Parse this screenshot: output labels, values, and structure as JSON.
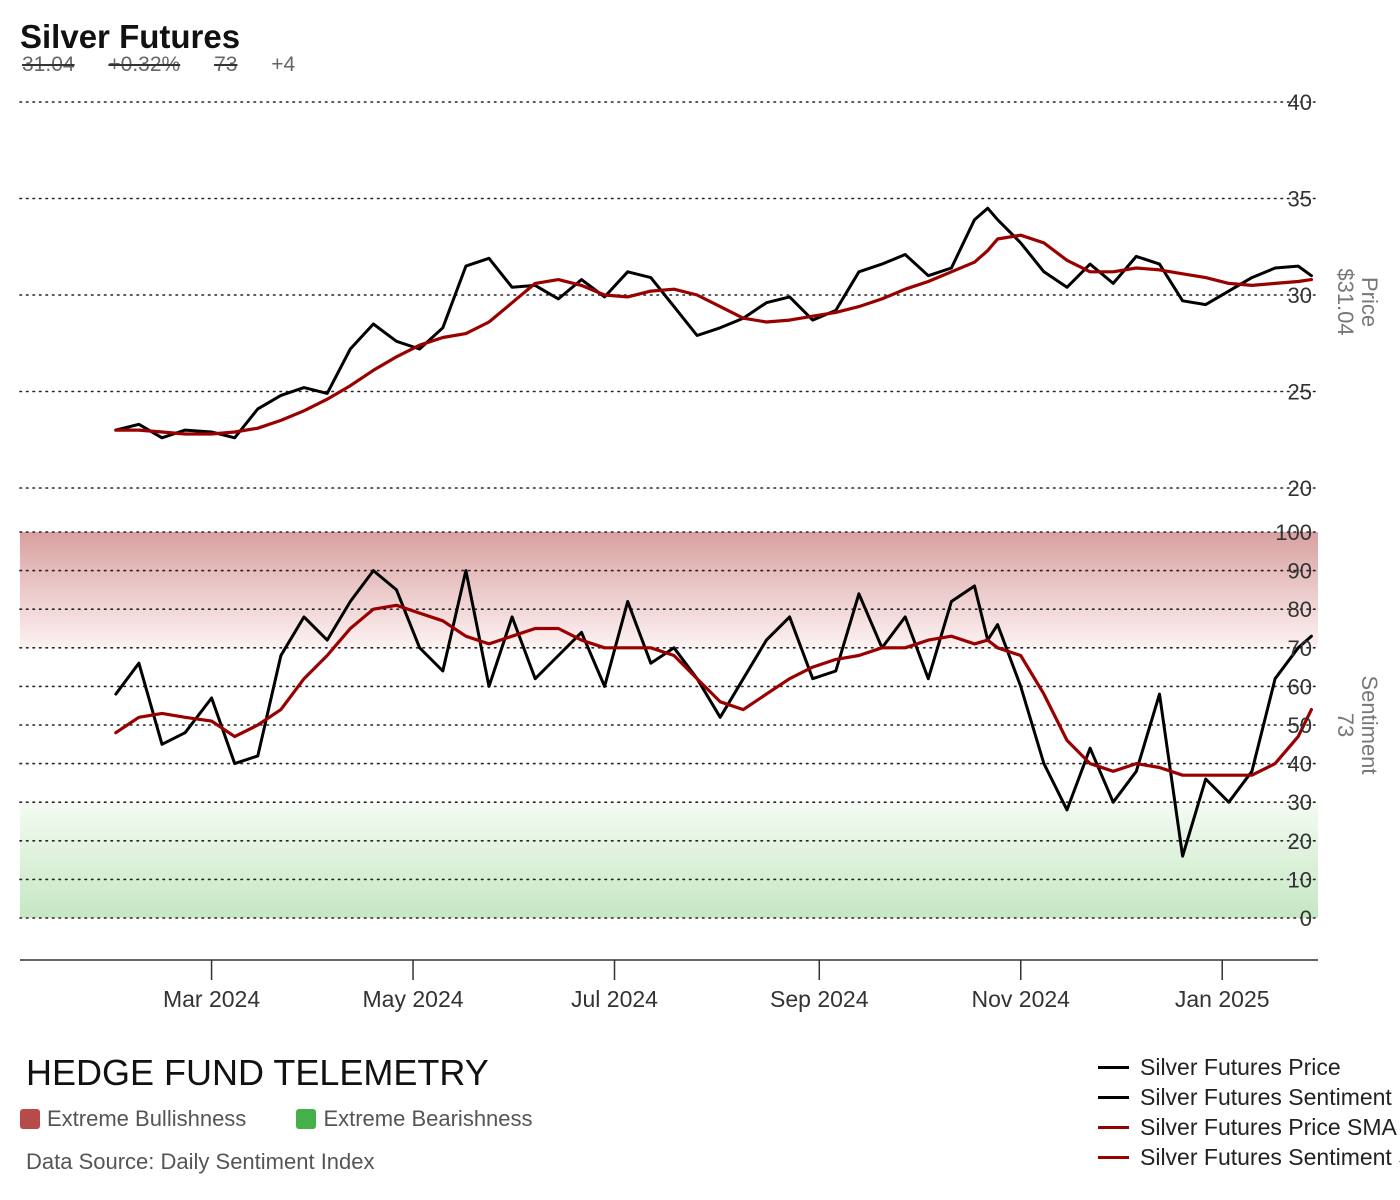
{
  "header": {
    "title": "Silver Futures",
    "price": "31.04",
    "change_pct": "+0.32%",
    "sentiment": "73",
    "sentiment_change": "+4"
  },
  "footer": {
    "brand": "HEDGE FUND TELEMETRY",
    "zones": [
      {
        "label": "Extreme Bullishness",
        "color": "#b94a4a"
      },
      {
        "label": "Extreme Bearishness",
        "color": "#44b04a"
      }
    ],
    "source": "Data Source: Daily Sentiment Index"
  },
  "legend": [
    {
      "label": "Silver Futures Price",
      "color": "#000000"
    },
    {
      "label": "Silver Futures Sentiment",
      "color": "#000000"
    },
    {
      "label": "Silver Futures Price SMA",
      "color": "#990000"
    },
    {
      "label": "Silver Futures Sentiment SMA",
      "color": "#990000"
    }
  ],
  "chart_data": [
    {
      "type": "line",
      "panel": "price",
      "ylabel": "Price",
      "last_value_label": "$31.04",
      "ylim": [
        20,
        40
      ],
      "yticks": [
        20,
        25,
        30,
        35,
        40
      ],
      "grid": true,
      "x_dates": [
        "2024-02-01",
        "2024-02-08",
        "2024-02-15",
        "2024-02-22",
        "2024-03-01",
        "2024-03-08",
        "2024-03-15",
        "2024-03-22",
        "2024-03-29",
        "2024-04-05",
        "2024-04-12",
        "2024-04-19",
        "2024-04-26",
        "2024-05-03",
        "2024-05-10",
        "2024-05-17",
        "2024-05-24",
        "2024-05-31",
        "2024-06-07",
        "2024-06-14",
        "2024-06-21",
        "2024-06-28",
        "2024-07-05",
        "2024-07-12",
        "2024-07-19",
        "2024-07-26",
        "2024-08-02",
        "2024-08-09",
        "2024-08-16",
        "2024-08-23",
        "2024-08-30",
        "2024-09-06",
        "2024-09-13",
        "2024-09-20",
        "2024-09-27",
        "2024-10-04",
        "2024-10-11",
        "2024-10-18",
        "2024-10-22",
        "2024-10-25",
        "2024-11-01",
        "2024-11-08",
        "2024-11-15",
        "2024-11-22",
        "2024-11-29",
        "2024-12-06",
        "2024-12-13",
        "2024-12-20",
        "2024-12-27",
        "2025-01-03",
        "2025-01-10",
        "2025-01-17",
        "2025-01-24",
        "2025-01-28"
      ],
      "series": [
        {
          "name": "Silver Futures Price",
          "color": "#000000",
          "values": [
            23.0,
            23.3,
            22.6,
            23.0,
            22.9,
            22.6,
            24.1,
            24.8,
            25.2,
            24.9,
            27.2,
            28.5,
            27.6,
            27.2,
            28.3,
            31.5,
            31.9,
            30.4,
            30.5,
            29.8,
            30.8,
            29.9,
            31.2,
            30.9,
            29.4,
            27.9,
            28.3,
            28.8,
            29.6,
            29.9,
            28.7,
            29.2,
            31.2,
            31.6,
            32.1,
            31.0,
            31.4,
            33.9,
            34.5,
            33.9,
            32.7,
            31.2,
            30.4,
            31.6,
            30.6,
            32.0,
            31.6,
            29.7,
            29.5,
            30.2,
            30.9,
            31.4,
            31.5,
            31.0
          ]
        },
        {
          "name": "Silver Futures Price SMA",
          "color": "#990000",
          "values": [
            23.0,
            23.0,
            22.9,
            22.8,
            22.8,
            22.9,
            23.1,
            23.5,
            24.0,
            24.6,
            25.3,
            26.1,
            26.8,
            27.4,
            27.8,
            28.0,
            28.6,
            29.6,
            30.6,
            30.8,
            30.5,
            30.0,
            29.9,
            30.2,
            30.3,
            30.0,
            29.4,
            28.8,
            28.6,
            28.7,
            28.9,
            29.1,
            29.4,
            29.8,
            30.3,
            30.7,
            31.2,
            31.7,
            32.3,
            32.9,
            33.1,
            32.7,
            31.8,
            31.2,
            31.2,
            31.4,
            31.3,
            31.1,
            30.9,
            30.6,
            30.5,
            30.6,
            30.7,
            30.8
          ]
        }
      ]
    },
    {
      "type": "line",
      "panel": "sentiment",
      "ylabel": "Sentiment",
      "last_value_label": "73",
      "ylim": [
        0,
        100
      ],
      "yticks": [
        0,
        10,
        20,
        30,
        40,
        50,
        60,
        70,
        80,
        90,
        100
      ],
      "grid": true,
      "zones": [
        {
          "label": "Extreme Bullishness",
          "from": 70,
          "to": 100,
          "color": "#b94a4a"
        },
        {
          "label": "Extreme Bearishness",
          "from": 0,
          "to": 30,
          "color": "#44b04a"
        }
      ],
      "x_dates": [
        "2024-02-01",
        "2024-02-08",
        "2024-02-15",
        "2024-02-22",
        "2024-03-01",
        "2024-03-08",
        "2024-03-15",
        "2024-03-22",
        "2024-03-29",
        "2024-04-05",
        "2024-04-12",
        "2024-04-19",
        "2024-04-26",
        "2024-05-03",
        "2024-05-10",
        "2024-05-17",
        "2024-05-24",
        "2024-05-31",
        "2024-06-07",
        "2024-06-14",
        "2024-06-21",
        "2024-06-28",
        "2024-07-05",
        "2024-07-12",
        "2024-07-19",
        "2024-07-26",
        "2024-08-02",
        "2024-08-09",
        "2024-08-16",
        "2024-08-23",
        "2024-08-30",
        "2024-09-06",
        "2024-09-13",
        "2024-09-20",
        "2024-09-27",
        "2024-10-04",
        "2024-10-11",
        "2024-10-18",
        "2024-10-22",
        "2024-10-25",
        "2024-11-01",
        "2024-11-08",
        "2024-11-15",
        "2024-11-22",
        "2024-11-29",
        "2024-12-06",
        "2024-12-13",
        "2024-12-20",
        "2024-12-27",
        "2025-01-03",
        "2025-01-10",
        "2025-01-17",
        "2025-01-24",
        "2025-01-28"
      ],
      "series": [
        {
          "name": "Silver Futures Sentiment",
          "color": "#000000",
          "values": [
            58,
            66,
            45,
            48,
            57,
            40,
            42,
            68,
            78,
            72,
            82,
            90,
            85,
            70,
            64,
            90,
            60,
            78,
            62,
            68,
            74,
            60,
            82,
            66,
            70,
            62,
            52,
            62,
            72,
            78,
            62,
            64,
            84,
            70,
            78,
            62,
            82,
            86,
            72,
            76,
            60,
            40,
            28,
            44,
            30,
            38,
            58,
            16,
            36,
            30,
            38,
            62,
            70,
            73
          ]
        },
        {
          "name": "Silver Futures Sentiment SMA",
          "color": "#990000",
          "values": [
            48,
            52,
            53,
            52,
            51,
            47,
            50,
            54,
            62,
            68,
            75,
            80,
            81,
            79,
            77,
            73,
            71,
            73,
            75,
            75,
            72,
            70,
            70,
            70,
            68,
            62,
            56,
            54,
            58,
            62,
            65,
            67,
            68,
            70,
            70,
            72,
            73,
            71,
            72,
            70,
            68,
            58,
            46,
            40,
            38,
            40,
            39,
            37,
            37,
            37,
            37,
            40,
            47,
            54
          ]
        }
      ]
    }
  ],
  "x_axis": {
    "labels": [
      "Mar 2024",
      "May 2024",
      "Jul 2024",
      "Sep 2024",
      "Nov 2024",
      "Jan 2025"
    ],
    "tick_dates": [
      "2024-03-01",
      "2024-05-01",
      "2024-07-01",
      "2024-09-01",
      "2024-11-01",
      "2025-01-01"
    ],
    "start": "2024-01-03",
    "end": "2025-01-30"
  }
}
